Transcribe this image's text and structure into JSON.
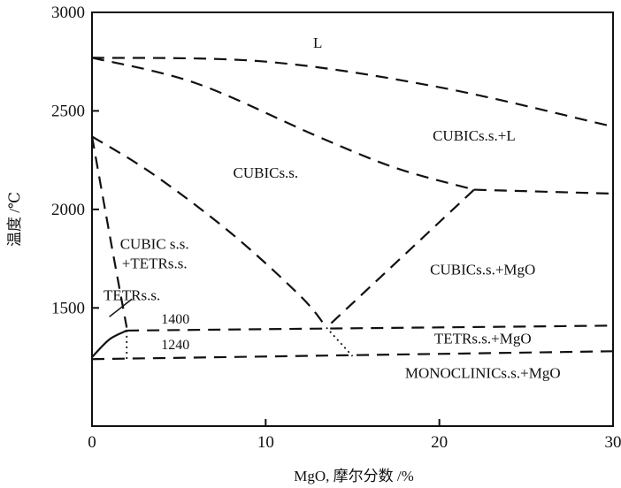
{
  "chart_data": {
    "type": "line",
    "title": "",
    "xlabel": "MgO, 摩尔分数 /%",
    "ylabel": "温度 /℃",
    "xlim": [
      0,
      30
    ],
    "ylim": [
      900,
      3000
    ],
    "xticks": [
      {
        "value": 0,
        "label": "0"
      },
      {
        "value": 10,
        "label": "10"
      },
      {
        "value": 20,
        "label": "20"
      },
      {
        "value": 30,
        "label": "30"
      }
    ],
    "yticks": [
      {
        "value": 1500,
        "label": "1500"
      },
      {
        "value": 2000,
        "label": "2000"
      },
      {
        "value": 2500,
        "label": "2500"
      },
      {
        "value": 3000,
        "label": "3000"
      }
    ],
    "grid": false,
    "legend": "none",
    "series": [
      {
        "style": "dashed",
        "points": [
          [
            0,
            2770
          ],
          [
            10,
            2750
          ],
          [
            20,
            2620
          ],
          [
            30,
            2420
          ]
        ]
      },
      {
        "style": "dashed",
        "points": [
          [
            0,
            2770
          ],
          [
            6,
            2640
          ],
          [
            13,
            2370
          ],
          [
            17.5,
            2210
          ],
          [
            22,
            2100
          ]
        ]
      },
      {
        "style": "dashed",
        "points": [
          [
            22,
            2100
          ],
          [
            30,
            2080
          ]
        ]
      },
      {
        "style": "dashed",
        "points": [
          [
            0,
            2370
          ],
          [
            3.5,
            2180
          ],
          [
            8,
            1880
          ],
          [
            12,
            1560
          ],
          [
            13.5,
            1400
          ]
        ]
      },
      {
        "style": "dashed",
        "points": [
          [
            22,
            2100
          ],
          [
            13.5,
            1400
          ]
        ]
      },
      {
        "style": "dashed",
        "points": [
          [
            0,
            2370
          ],
          [
            1.1,
            1830
          ],
          [
            2,
            1400
          ]
        ]
      },
      {
        "style": "solid",
        "points": [
          [
            0,
            1250
          ],
          [
            1,
            1340
          ],
          [
            2,
            1385
          ]
        ]
      },
      {
        "style": "dashed",
        "points": [
          [
            2,
            1385
          ],
          [
            30,
            1410
          ]
        ]
      },
      {
        "style": "dashed",
        "points": [
          [
            0,
            1240
          ],
          [
            30,
            1280
          ]
        ]
      },
      {
        "style": "dotted",
        "points": [
          [
            2,
            1385
          ],
          [
            2,
            1240
          ]
        ]
      },
      {
        "style": "dotted",
        "points": [
          [
            13.5,
            1400
          ],
          [
            15,
            1255
          ]
        ]
      }
    ],
    "region_labels": [
      {
        "text": "L",
        "x": 13,
        "y": 2820
      },
      {
        "text": "CUBICs.s.+L",
        "x": 22,
        "y": 2350
      },
      {
        "text": "CUBICs.s.",
        "x": 10,
        "y": 2160
      },
      {
        "text": "CUBIC s.s.",
        "x": 3.6,
        "y": 1800
      },
      {
        "text": "+TETRs.s.",
        "x": 3.6,
        "y": 1700
      },
      {
        "text": "CUBICs.s.+MgO",
        "x": 22.5,
        "y": 1670
      },
      {
        "text": "TETRs.s.",
        "x": 2.3,
        "y": 1540
      },
      {
        "text": "1400",
        "x": 4.8,
        "y": 1420
      },
      {
        "text": "1240",
        "x": 4.8,
        "y": 1290
      },
      {
        "text": "TETRs.s.+MgO",
        "x": 22.5,
        "y": 1320
      },
      {
        "text": "MONOCLINICs.s.+MgO",
        "x": 22.5,
        "y": 1145
      }
    ],
    "pointer": {
      "from": [
        1,
        1455
      ],
      "to": [
        2.3,
        1545
      ]
    }
  }
}
